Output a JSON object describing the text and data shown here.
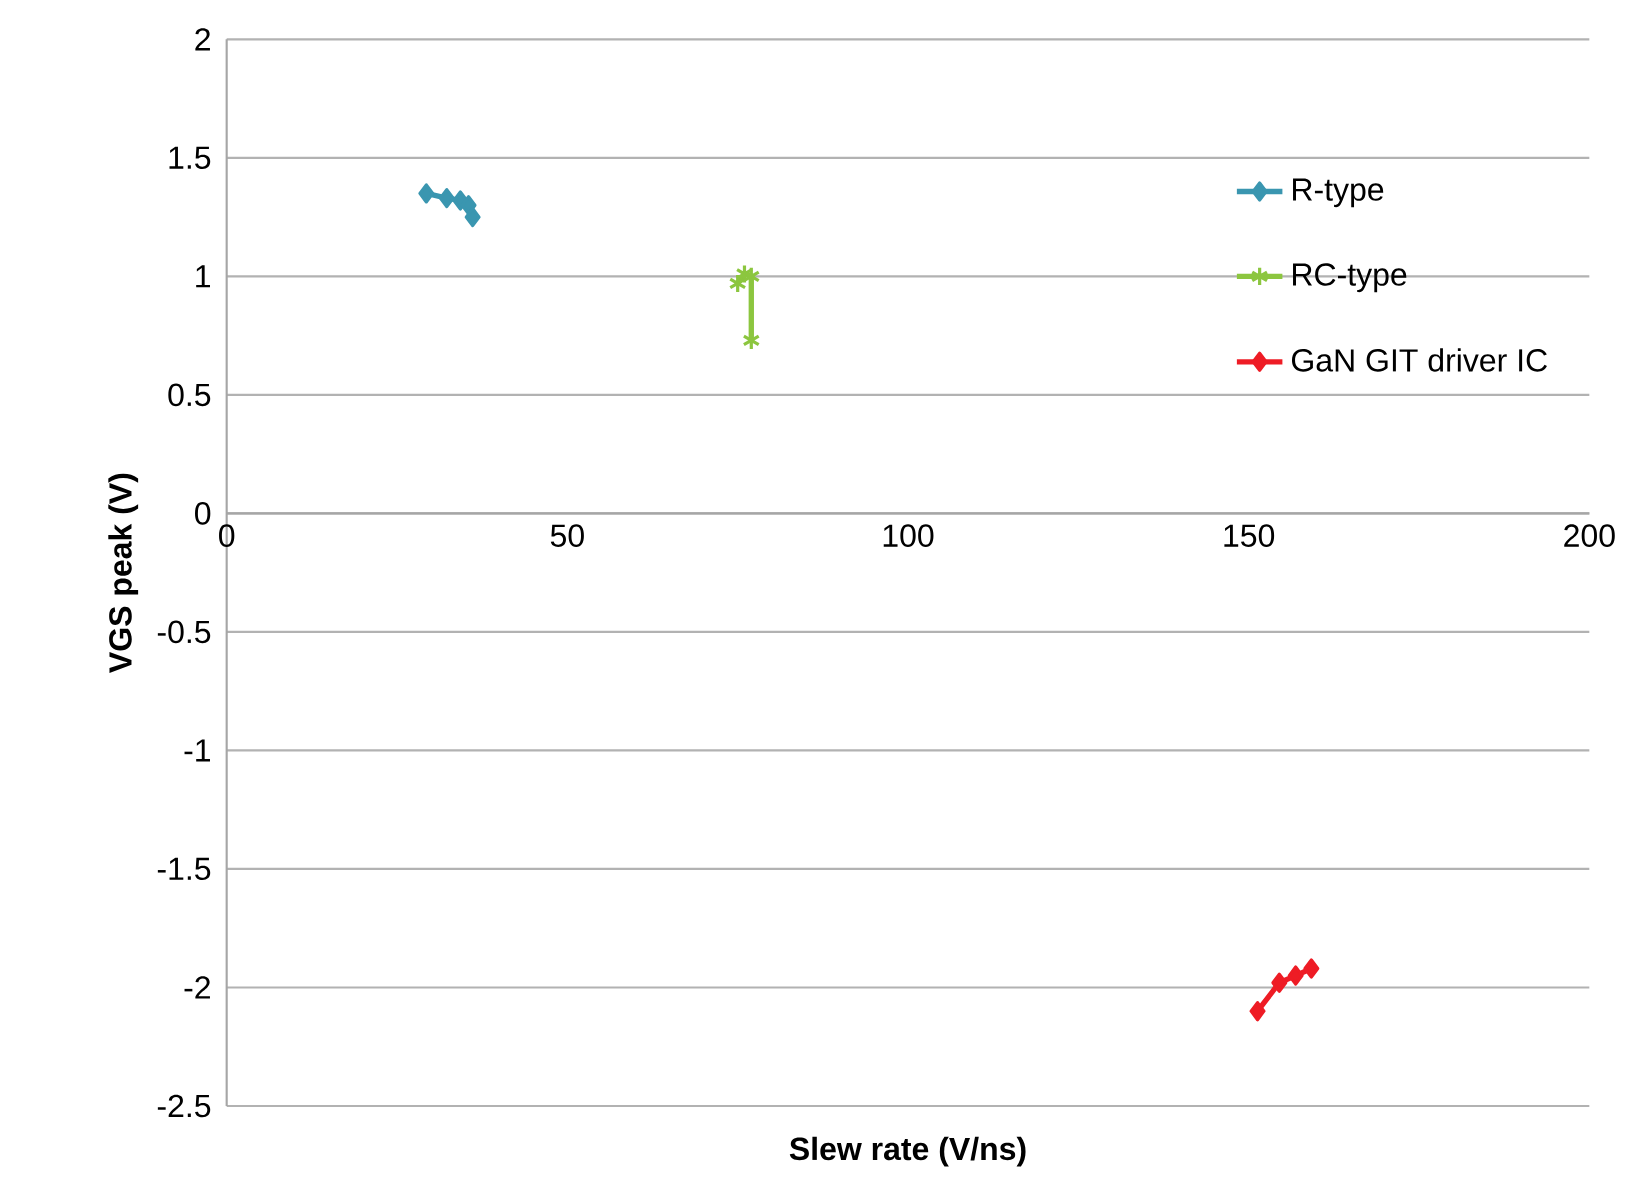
{
  "chart_data": {
    "type": "line",
    "xlabel": "Slew rate (V/ns)",
    "ylabel": "VGS peak (V)",
    "xlim": [
      0,
      200
    ],
    "xticks": [
      0,
      50,
      100,
      150,
      200
    ],
    "ylim": [
      -2.5,
      2
    ],
    "yticks": [
      -2.5,
      -2,
      -1.5,
      -1,
      -0.5,
      0,
      0.5,
      1,
      1.5,
      2
    ],
    "grid": "y",
    "legend": "right",
    "series": [
      {
        "name": "R-type",
        "color": "#3a96b0",
        "marker": "diamond",
        "x": [
          29.3,
          32.3,
          34.3,
          35.5,
          36.1
        ],
        "values": [
          1.35,
          1.33,
          1.32,
          1.3,
          1.25
        ]
      },
      {
        "name": "RC-type",
        "color": "#8cc63f",
        "marker": "cross",
        "x": [
          75,
          76,
          77,
          77
        ],
        "values": [
          0.97,
          1.01,
          1.0,
          0.73
        ]
      },
      {
        "name": "GaN GIT driver IC",
        "color": "#ee1c25",
        "marker": "diamond",
        "x": [
          151.3,
          154.5,
          156.9,
          159.2
        ],
        "values": [
          -2.1,
          -1.98,
          -1.95,
          -1.92
        ]
      }
    ]
  }
}
